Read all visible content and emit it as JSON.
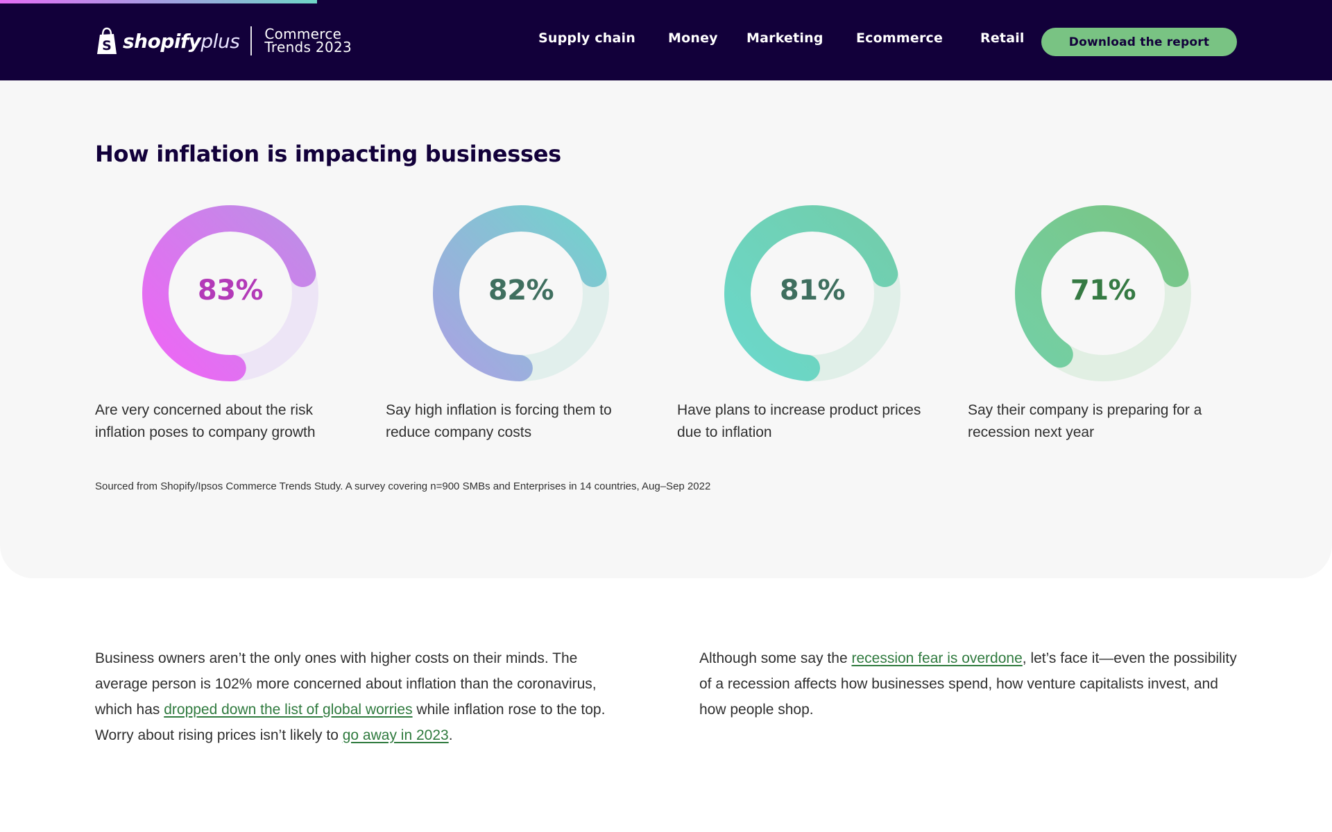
{
  "header": {
    "brand_main": "shopify",
    "brand_plus": "plus",
    "edition_line1": "Commerce",
    "edition_line2": "Trends 2023",
    "nav": [
      {
        "label": "Supply chain"
      },
      {
        "label": "Money"
      },
      {
        "label": "Marketing"
      },
      {
        "label": "Ecommerce"
      },
      {
        "label": "Retail"
      }
    ],
    "cta_label": "Download the report"
  },
  "section": {
    "title": "How inflation is impacting businesses",
    "stats": [
      {
        "percent": 83,
        "label": "83%",
        "caption": "Are very concerned about the risk inflation poses to company growth",
        "value_color": "#b33ab8",
        "ring_start": "#ee66f5",
        "ring_end": "#bd8ee6",
        "track": "#ede5f6"
      },
      {
        "percent": 82,
        "label": "82%",
        "caption": "Say high inflation is forcing them to reduce company costs",
        "value_color": "#3f6f5f",
        "ring_start": "#a9a3e3",
        "ring_end": "#73d2cc",
        "track": "#e1efec"
      },
      {
        "percent": 81,
        "label": "81%",
        "caption": "Have plans to increase product prices due to inflation",
        "value_color": "#3f6f5f",
        "ring_start": "#6bd8cb",
        "ring_end": "#72cdaa",
        "track": "#e0efe8"
      },
      {
        "percent": 71,
        "label": "71%",
        "caption": "Say their company is preparing for a recession next year",
        "value_color": "#357a43",
        "ring_start": "#74cfa4",
        "ring_end": "#79c584",
        "track": "#e1efe3"
      }
    ],
    "source": "Sourced from Shopify/Ipsos Commerce Trends Study. A survey covering n=900 SMBs and Enterprises in 14 countries, Aug–Sep 2022"
  },
  "body": {
    "left": {
      "p1": "Business owners aren’t the only ones with higher costs on their minds. The average person is 102% more concerned about inflation than the coronavirus, which has ",
      "link1": "dropped down the list of global worries",
      "p2": " while inflation rose to the top. Worry about rising prices isn’t likely to ",
      "link2": "go away in 2023",
      "p3": "."
    },
    "right": {
      "p1": "Although some say the ",
      "link1": "recession fear is overdone",
      "p2": ", let’s face it—even the possibility of a recession affects how businesses spend, how venture capitalists invest, and how people shop."
    }
  }
}
